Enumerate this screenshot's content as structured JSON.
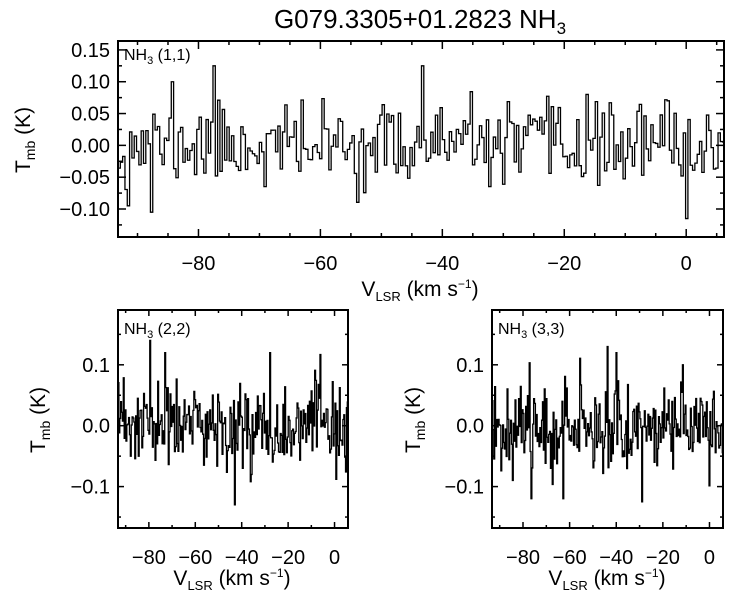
{
  "title": {
    "main": "G079.3305+01.2823 NH",
    "sub": "3"
  },
  "chart_data": [
    {
      "type": "line",
      "style": "histogram-step",
      "label": {
        "main": "NH",
        "sub": "3",
        "rest": " (1,1)"
      },
      "xlabel": {
        "main": "V",
        "sub": "LSR",
        "rest": " (km s",
        "sup": "−1",
        "end": ")"
      },
      "ylabel": {
        "main": "T",
        "sub": "mb",
        "rest": " (K)"
      },
      "xlim": [
        -93.2,
        6.2
      ],
      "ylim": [
        -0.144,
        0.164
      ],
      "xticks": [
        -80,
        -60,
        -40,
        -20,
        0
      ],
      "xtick_labels": [
        "−80",
        "−60",
        "−40",
        "−20",
        "0"
      ],
      "xminor": 5,
      "yticks": [
        -0.1,
        -0.05,
        0.0,
        0.05,
        0.1,
        0.15
      ],
      "ytick_labels": [
        "−0.10",
        "−0.05",
        "0.00",
        "0.05",
        "0.10",
        "0.15"
      ],
      "yminor": 0.025,
      "channel_width": 0.38,
      "rms": 0.037,
      "seed": 11,
      "features": [
        [
          -84.5,
          0.1
        ],
        [
          -77.5,
          0.125
        ],
        [
          -43.5,
          0.125
        ],
        [
          -16.5,
          0.08
        ],
        [
          -3,
          0.07
        ],
        [
          -0.2,
          -0.115
        ],
        [
          -91.5,
          -0.095
        ],
        [
          -88,
          -0.105
        ]
      ]
    },
    {
      "type": "line",
      "style": "histogram-step",
      "label": {
        "main": "NH",
        "sub": "3",
        "rest": " (2,2)"
      },
      "xlabel": {
        "main": "V",
        "sub": "LSR",
        "rest": " (km s",
        "sup": "−1",
        "end": ")"
      },
      "ylabel": {
        "main": "T",
        "sub": "mb",
        "rest": " (K)"
      },
      "xlim": [
        -93.3,
        5.8
      ],
      "ylim": [
        -0.168,
        0.19
      ],
      "xticks": [
        -80,
        -60,
        -40,
        -20,
        0
      ],
      "xtick_labels": [
        "−80",
        "−60",
        "−40",
        "−20",
        "0"
      ],
      "xminor": 10,
      "yticks": [
        -0.1,
        0.0,
        0.1
      ],
      "ytick_labels": [
        "−0.1",
        "0.0",
        "0.1"
      ],
      "yminor": 0.05,
      "channel_width": 0.38,
      "rms": 0.042,
      "seed": 23,
      "features": [
        [
          -79.5,
          0.14
        ],
        [
          -43,
          -0.13
        ],
        [
          -28,
          0.12
        ],
        [
          -73,
          0.12
        ]
      ]
    },
    {
      "type": "line",
      "style": "histogram-step",
      "label": {
        "main": "NH",
        "sub": "3",
        "rest": " (3,3)"
      },
      "xlabel": {
        "main": "V",
        "sub": "LSR",
        "rest": " (km s",
        "sup": "−1",
        "end": ")"
      },
      "ylabel": {
        "main": "T",
        "sub": "mb",
        "rest": " (K)"
      },
      "xlim": [
        -93.3,
        5.8
      ],
      "ylim": [
        -0.168,
        0.19
      ],
      "xticks": [
        -80,
        -60,
        -40,
        -20,
        0
      ],
      "xtick_labels": [
        "−80",
        "−60",
        "−40",
        "−20",
        "0"
      ],
      "xminor": 10,
      "yticks": [
        -0.1,
        0.0,
        0.1
      ],
      "ytick_labels": [
        "−0.1",
        "0.0",
        "0.1"
      ],
      "yminor": 0.05,
      "channel_width": 0.38,
      "rms": 0.042,
      "seed": 37,
      "features": [
        [
          -44,
          0.13
        ],
        [
          -40,
          0.12
        ],
        [
          -76.5,
          -0.12
        ],
        [
          -63,
          -0.12
        ],
        [
          -29,
          -0.125
        ]
      ]
    }
  ]
}
